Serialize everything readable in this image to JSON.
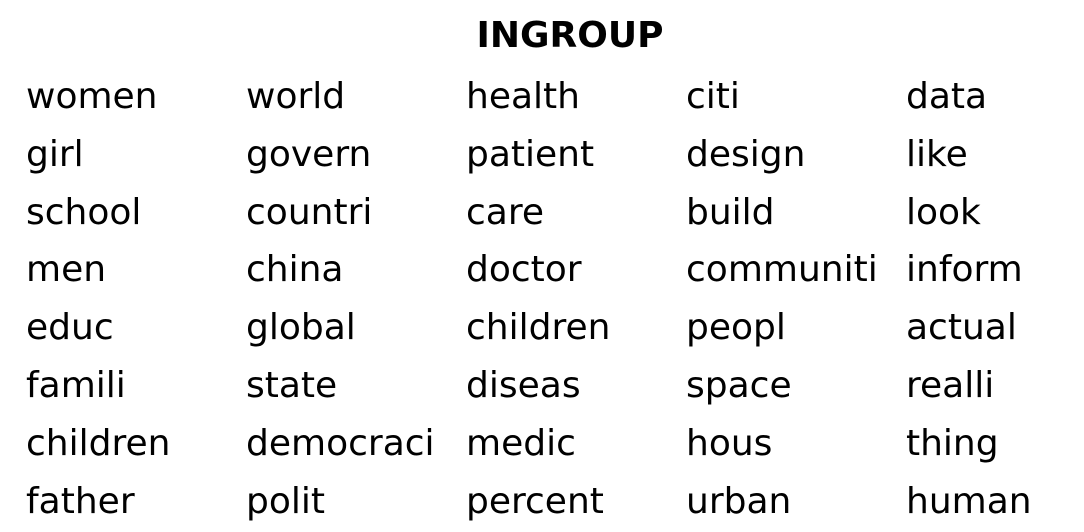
{
  "title": "INGROUP",
  "columns": [
    [
      "women",
      "girl",
      "school",
      "men",
      "educ",
      "famili",
      "children",
      "father"
    ],
    [
      "world",
      "govern",
      "countri",
      "china",
      "global",
      "state",
      "democraci",
      "polit"
    ],
    [
      "health",
      "patient",
      "care",
      "doctor",
      "children",
      "diseas",
      "medic",
      "percent"
    ],
    [
      "citi",
      "design",
      "build",
      "communiti",
      "peopl",
      "space",
      "hous",
      "urban"
    ],
    [
      "data",
      "like",
      "look",
      "inform",
      "actual",
      "realli",
      "thing",
      "human"
    ]
  ]
}
